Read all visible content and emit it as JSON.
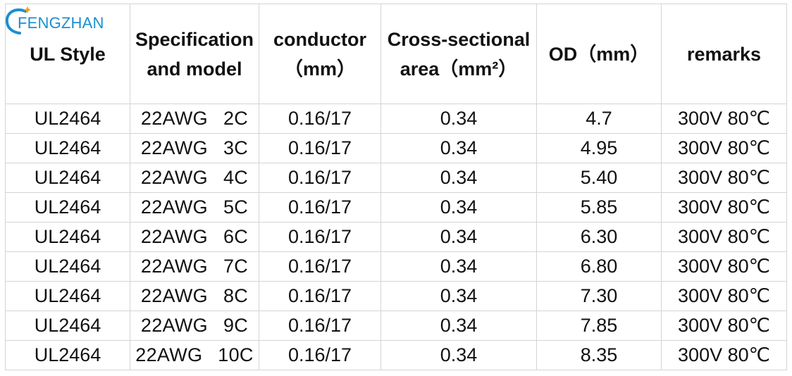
{
  "logo": {
    "text": "FENGZHAN",
    "color": "#1a8fd0",
    "accent_color": "#f3a21a"
  },
  "table": {
    "headers": [
      {
        "line1": "UL Style",
        "line2": ""
      },
      {
        "line1": "Specification",
        "line2": "and model"
      },
      {
        "line1": "conductor",
        "line2": "（mm）"
      },
      {
        "line1": "Cross-sectional",
        "line2": "area（mm²）"
      },
      {
        "line1": "OD（mm）",
        "line2": ""
      },
      {
        "line1": "remarks",
        "line2": ""
      }
    ],
    "rows": [
      {
        "ul_style": "UL2464",
        "gauge": "22AWG",
        "cores": "2C",
        "conductor": "0.16/17",
        "area": "0.34",
        "od": "4.7",
        "remarks": "300V 80℃"
      },
      {
        "ul_style": "UL2464",
        "gauge": "22AWG",
        "cores": "3C",
        "conductor": "0.16/17",
        "area": "0.34",
        "od": "4.95",
        "remarks": "300V 80℃"
      },
      {
        "ul_style": "UL2464",
        "gauge": "22AWG",
        "cores": "4C",
        "conductor": "0.16/17",
        "area": "0.34",
        "od": "5.40",
        "remarks": "300V 80℃"
      },
      {
        "ul_style": "UL2464",
        "gauge": "22AWG",
        "cores": "5C",
        "conductor": "0.16/17",
        "area": "0.34",
        "od": "5.85",
        "remarks": "300V 80℃"
      },
      {
        "ul_style": "UL2464",
        "gauge": "22AWG",
        "cores": "6C",
        "conductor": "0.16/17",
        "area": "0.34",
        "od": "6.30",
        "remarks": "300V 80℃"
      },
      {
        "ul_style": "UL2464",
        "gauge": "22AWG",
        "cores": "7C",
        "conductor": "0.16/17",
        "area": "0.34",
        "od": "6.80",
        "remarks": "300V 80℃"
      },
      {
        "ul_style": "UL2464",
        "gauge": "22AWG",
        "cores": "8C",
        "conductor": "0.16/17",
        "area": "0.34",
        "od": "7.30",
        "remarks": "300V 80℃"
      },
      {
        "ul_style": "UL2464",
        "gauge": "22AWG",
        "cores": "9C",
        "conductor": "0.16/17",
        "area": "0.34",
        "od": "7.85",
        "remarks": "300V 80℃"
      },
      {
        "ul_style": "UL2464",
        "gauge": "22AWG",
        "cores": "10C",
        "conductor": "0.16/17",
        "area": "0.34",
        "od": "8.35",
        "remarks": "300V 80℃"
      }
    ]
  }
}
